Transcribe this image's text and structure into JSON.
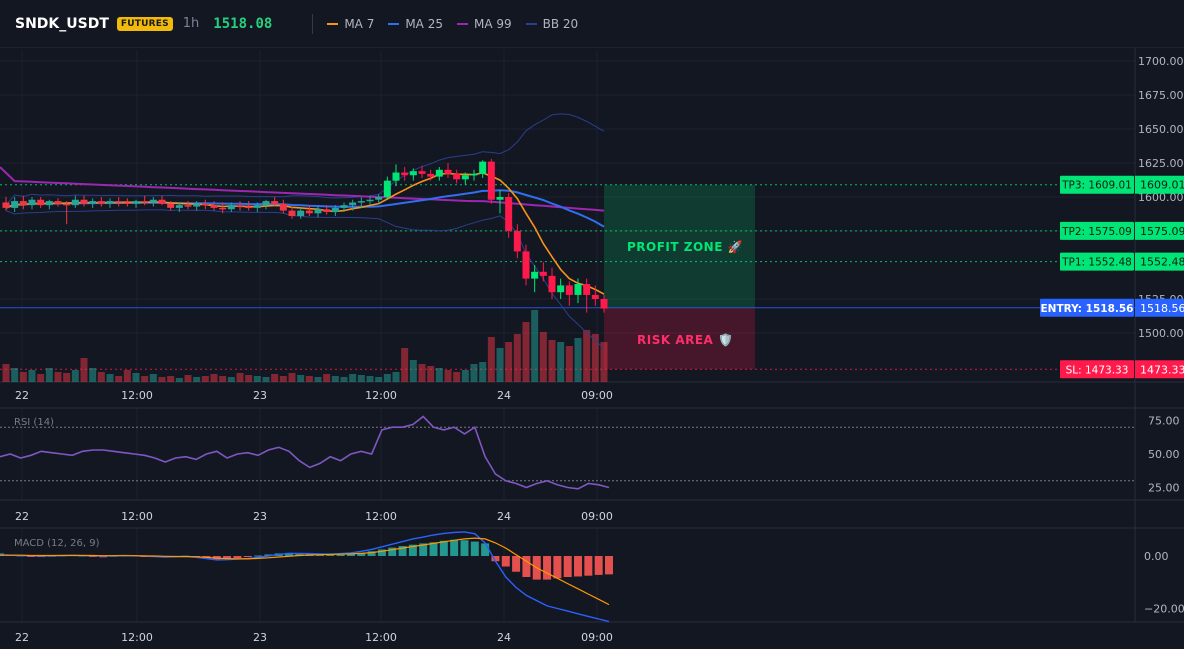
{
  "header": {
    "symbol": "SNDK_USDT",
    "badge": "FUTURES",
    "timeframe": "1h",
    "price": "1518.08",
    "legend": [
      {
        "label": "MA 7",
        "color": "#f7931a"
      },
      {
        "label": "MA 25",
        "color": "#2f6ff0"
      },
      {
        "label": "MA 99",
        "color": "#9c27b0"
      },
      {
        "label": "BB 20",
        "color": "#2a3f8f"
      }
    ]
  },
  "colors": {
    "up": "#26a69a",
    "down": "#f23645",
    "upBright": "#00e676",
    "downBright": "#ff1a4b",
    "tp": "#00e676",
    "entry": "#2962ff",
    "sl": "#ff1a4b"
  },
  "x_axis": [
    "22",
    "12:00",
    "23",
    "12:00",
    "24",
    "09:00"
  ],
  "levels": [
    {
      "name": "TP3",
      "label": "TP3: 1609.01",
      "value": 1609.01,
      "axis": "1609.01"
    },
    {
      "name": "TP2",
      "label": "TP2: 1575.09",
      "value": 1575.09,
      "axis": "1575.09"
    },
    {
      "name": "TP1",
      "label": "TP1: 1552.48",
      "value": 1552.48,
      "axis": "1552.48"
    },
    {
      "name": "ENTRY",
      "label": "ENTRY: 1518.56",
      "value": 1518.56,
      "axis": "1518.56"
    },
    {
      "name": "SL",
      "label": "SL: 1473.33",
      "value": 1473.33,
      "axis": "1473.33"
    }
  ],
  "zones": {
    "profit": "PROFIT ZONE 🚀",
    "risk": "RISK AREA 🛡️"
  },
  "rsi": {
    "label": "RSI (14)",
    "ticks": [
      "75.00",
      "50.00",
      "25.00"
    ],
    "ylim": [
      0,
      100
    ],
    "bands": [
      70,
      30
    ]
  },
  "macd": {
    "label": "MACD (12, 26, 9)",
    "ticks": [
      "0.00",
      "−20.00"
    ],
    "ylim": [
      -30,
      10
    ]
  },
  "chart_data": [
    {
      "type": "candlestick",
      "ylim": [
        1470,
        1712
      ],
      "y_ticks": [
        1700,
        1675,
        1650,
        1625,
        1600,
        1575,
        1525,
        1500
      ],
      "y_tick_labels": [
        "1700.00",
        "1675.00",
        "1650.00",
        "1625.00",
        "1600.00",
        "1575.00",
        "1525.00",
        "1500.00"
      ],
      "x_tick_labels": [
        "22",
        "12:00",
        "23",
        "12:00",
        "24",
        "09:00"
      ],
      "ohlc": [
        [
          1596,
          1600,
          1590,
          1592
        ],
        [
          1592,
          1600,
          1589,
          1597
        ],
        [
          1597,
          1601,
          1591,
          1594
        ],
        [
          1594,
          1600,
          1591,
          1598
        ],
        [
          1598,
          1600,
          1592,
          1594
        ],
        [
          1594,
          1598,
          1591,
          1597
        ],
        [
          1597,
          1599,
          1593,
          1595
        ],
        [
          1595,
          1597,
          1580,
          1594
        ],
        [
          1594,
          1601,
          1592,
          1598
        ],
        [
          1598,
          1601,
          1593,
          1595
        ],
        [
          1595,
          1599,
          1592,
          1597
        ],
        [
          1597,
          1600,
          1593,
          1595
        ],
        [
          1595,
          1599,
          1592,
          1597
        ],
        [
          1597,
          1600,
          1593,
          1596
        ],
        [
          1596,
          1599,
          1593,
          1595
        ],
        [
          1595,
          1598,
          1592,
          1597
        ],
        [
          1597,
          1601,
          1594,
          1596
        ],
        [
          1596,
          1600,
          1593,
          1598
        ],
        [
          1598,
          1601,
          1594,
          1595
        ],
        [
          1595,
          1597,
          1590,
          1592
        ],
        [
          1592,
          1596,
          1589,
          1594
        ],
        [
          1594,
          1597,
          1591,
          1593
        ],
        [
          1593,
          1597,
          1590,
          1595
        ],
        [
          1595,
          1598,
          1591,
          1594
        ],
        [
          1594,
          1597,
          1590,
          1592
        ],
        [
          1592,
          1596,
          1588,
          1591
        ],
        [
          1591,
          1596,
          1589,
          1594
        ],
        [
          1594,
          1597,
          1590,
          1593
        ],
        [
          1593,
          1597,
          1590,
          1592
        ],
        [
          1592,
          1596,
          1589,
          1594
        ],
        [
          1594,
          1598,
          1591,
          1597
        ],
        [
          1597,
          1600,
          1593,
          1595
        ],
        [
          1595,
          1598,
          1588,
          1590
        ],
        [
          1590,
          1593,
          1584,
          1586
        ],
        [
          1586,
          1592,
          1584,
          1590
        ],
        [
          1590,
          1594,
          1586,
          1588
        ],
        [
          1588,
          1593,
          1585,
          1591
        ],
        [
          1591,
          1594,
          1587,
          1589
        ],
        [
          1589,
          1594,
          1586,
          1592
        ],
        [
          1592,
          1596,
          1589,
          1594
        ],
        [
          1594,
          1598,
          1590,
          1596
        ],
        [
          1596,
          1600,
          1592,
          1597
        ],
        [
          1597,
          1601,
          1594,
          1598
        ],
        [
          1598,
          1602,
          1595,
          1600
        ],
        [
          1600,
          1615,
          1598,
          1612
        ],
        [
          1612,
          1624,
          1608,
          1618
        ],
        [
          1618,
          1622,
          1612,
          1616
        ],
        [
          1616,
          1621,
          1612,
          1619
        ],
        [
          1619,
          1623,
          1614,
          1617
        ],
        [
          1617,
          1620,
          1612,
          1615
        ],
        [
          1615,
          1622,
          1612,
          1620
        ],
        [
          1620,
          1625,
          1614,
          1617
        ],
        [
          1617,
          1620,
          1610,
          1613
        ],
        [
          1613,
          1618,
          1609,
          1616
        ],
        [
          1616,
          1620,
          1612,
          1617
        ],
        [
          1617,
          1627,
          1614,
          1626
        ],
        [
          1626,
          1628,
          1595,
          1598
        ],
        [
          1598,
          1605,
          1588,
          1600
        ],
        [
          1600,
          1603,
          1570,
          1575
        ],
        [
          1575,
          1580,
          1555,
          1560
        ],
        [
          1560,
          1565,
          1535,
          1540
        ],
        [
          1540,
          1550,
          1530,
          1545
        ],
        [
          1545,
          1552,
          1538,
          1542
        ],
        [
          1542,
          1548,
          1525,
          1530
        ],
        [
          1530,
          1540,
          1525,
          1535
        ],
        [
          1535,
          1538,
          1520,
          1528
        ],
        [
          1528,
          1540,
          1522,
          1536
        ],
        [
          1536,
          1540,
          1515,
          1528
        ],
        [
          1528,
          1535,
          1520,
          1525
        ],
        [
          1525,
          1528,
          1515,
          1518
        ]
      ],
      "volume": [
        18,
        14,
        10,
        12,
        8,
        14,
        10,
        9,
        12,
        24,
        14,
        10,
        8,
        6,
        12,
        9,
        6,
        8,
        5,
        6,
        4,
        7,
        5,
        6,
        8,
        6,
        5,
        9,
        7,
        6,
        5,
        8,
        6,
        9,
        7,
        6,
        5,
        8,
        6,
        5,
        8,
        7,
        6,
        5,
        8,
        10,
        34,
        22,
        18,
        16,
        14,
        12,
        10,
        12,
        18,
        20,
        45,
        34,
        40,
        48,
        60,
        72,
        50,
        42,
        40,
        36,
        44,
        52,
        48,
        40
      ]
    },
    {
      "type": "line",
      "title": "RSI (14)",
      "ylim": [
        0,
        100
      ],
      "y_ticks": [
        75,
        50,
        25
      ],
      "values": [
        48,
        50,
        47,
        49,
        52,
        51,
        50,
        49,
        52,
        53,
        53,
        52,
        51,
        50,
        49,
        47,
        44,
        47,
        48,
        46,
        50,
        52,
        47,
        50,
        51,
        49,
        53,
        55,
        52,
        45,
        40,
        43,
        48,
        45,
        50,
        52,
        50,
        68,
        70,
        70,
        72,
        78,
        70,
        68,
        70,
        65,
        70,
        48,
        35,
        30,
        28,
        25,
        28,
        30,
        27,
        25,
        24,
        28,
        27,
        25
      ]
    },
    {
      "type": "bar",
      "title": "MACD (12, 26, 9)",
      "ylim": [
        -30,
        10
      ],
      "y_ticks": [
        0,
        -20
      ],
      "histogram": [
        1,
        0.5,
        0.2,
        -0.2,
        -0.4,
        0.1,
        0.3,
        0.5,
        0.2,
        -0.3,
        -0.5,
        0.1,
        0.3,
        0.2,
        -0.2,
        -0.4,
        -0.6,
        -0.2,
        0.1,
        -0.3,
        -1,
        -1.5,
        -1.2,
        -0.8,
        -0.4,
        0.2,
        0.6,
        1,
        1.2,
        1,
        0.8,
        0.6,
        0.4,
        0.5,
        0.8,
        1.2,
        1.8,
        2.5,
        3.2,
        3.8,
        4.3,
        4.8,
        5.2,
        5.8,
        6.2,
        6,
        5.5,
        4.8,
        -2,
        -4,
        -6,
        -8,
        -9,
        -9,
        -8.5,
        -8,
        -7.8,
        -7.5,
        -7.2,
        -7
      ],
      "macd": [
        0.5,
        0.3,
        0.2,
        0.1,
        0,
        0.1,
        0.2,
        0.3,
        0.2,
        0.1,
        0,
        0.1,
        0.2,
        0.1,
        0,
        -0.2,
        -0.4,
        -0.3,
        -0.2,
        -0.5,
        -1,
        -1.5,
        -1.4,
        -1.2,
        -1,
        -0.5,
        0,
        0.6,
        1,
        1,
        0.9,
        0.8,
        0.7,
        0.9,
        1.2,
        1.8,
        2.5,
        3.5,
        4.5,
        5.5,
        6.5,
        7.2,
        8,
        8.6,
        9,
        9.2,
        8.5,
        5,
        -2,
        -8,
        -12,
        -15,
        -17,
        -19,
        -20,
        -21,
        -22,
        -23,
        -24,
        -25
      ],
      "signal": [
        0.3,
        0.3,
        0.3,
        0.2,
        0.2,
        0.2,
        0.2,
        0.2,
        0.2,
        0.2,
        0.1,
        0.1,
        0.1,
        0.1,
        0,
        0,
        -0.1,
        -0.2,
        -0.2,
        -0.3,
        -0.5,
        -0.8,
        -1,
        -1.1,
        -1.1,
        -0.9,
        -0.7,
        -0.4,
        -0.1,
        0.2,
        0.4,
        0.5,
        0.6,
        0.7,
        0.8,
        1,
        1.3,
        1.8,
        2.4,
        3,
        3.6,
        4.2,
        4.8,
        5.4,
        6,
        6.5,
        6.8,
        6.5,
        5,
        3,
        0.5,
        -2,
        -4.5,
        -6.5,
        -8.5,
        -10.5,
        -12.5,
        -14.5,
        -16.5,
        -18.5
      ]
    }
  ]
}
